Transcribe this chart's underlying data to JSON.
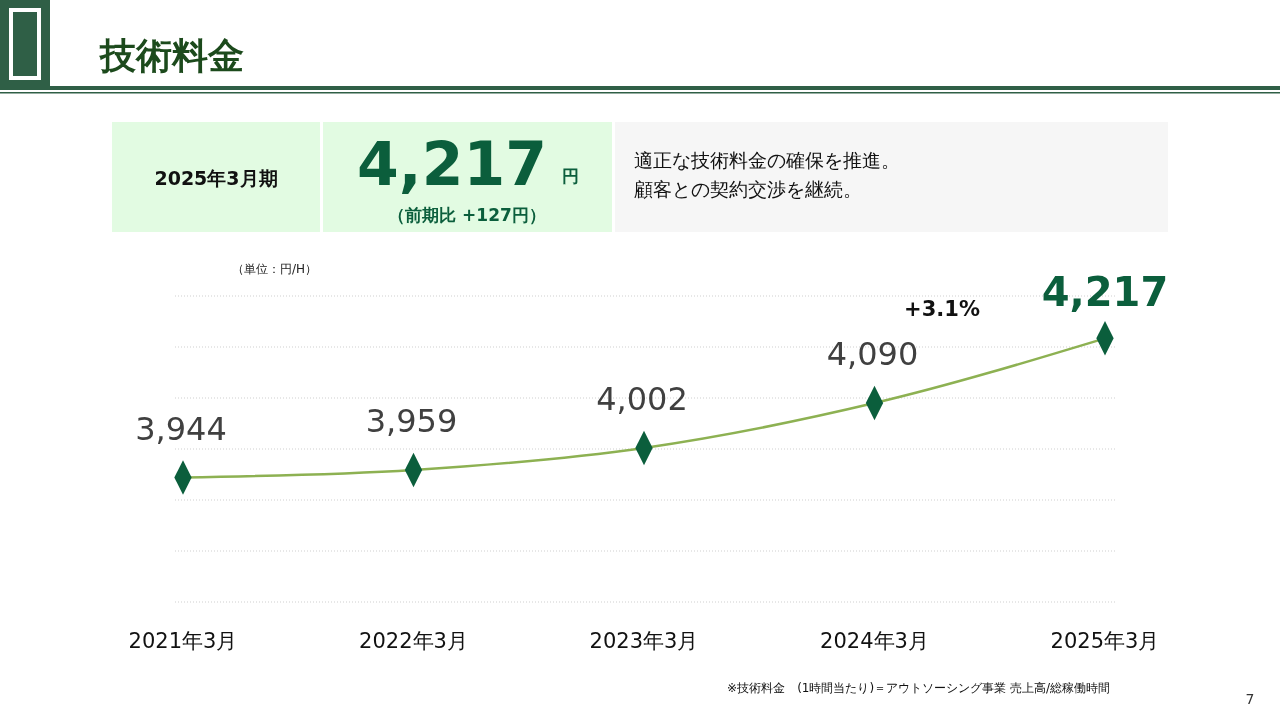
{
  "chart_data": {
    "type": "line",
    "title": "技術料金",
    "categories": [
      "2021年3月",
      "2022年3月",
      "2023年3月",
      "2024年3月",
      "2025年3月"
    ],
    "series": [
      {
        "color": "#8db152",
        "values": [
          3944,
          3959,
          4002,
          4090,
          4217
        ],
        "value_labels": [
          "3,944",
          "3,959",
          "4,002",
          "4,090",
          "4,217"
        ]
      }
    ],
    "grid": "y",
    "tick_labels": "x",
    "marker": "diamond",
    "line_style": "solid",
    "annotations": [
      "2025年3月期",
      "4,217",
      "円",
      "（前期比 +127円）",
      "適正な技術料金の確保を推進。",
      "顧客との契約交渉を継続。",
      "+3.1%",
      "※技術料金　(1時間当たり)＝アウトソーシング事業 売上高/総稼働時間",
      "7",
      "（単位：円/H）"
    ]
  }
}
